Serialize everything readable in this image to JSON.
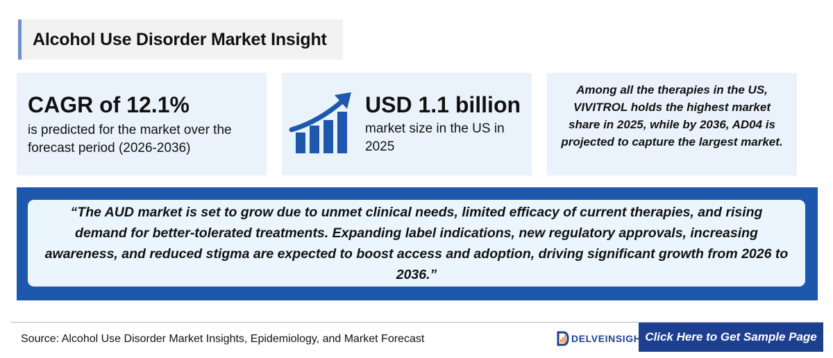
{
  "header": {
    "title": "Alcohol Use Disorder Market Insight"
  },
  "cards": {
    "cagr": {
      "headline": "CAGR of 12.1%",
      "description": "is predicted for the market over the forecast period (2026-2036)"
    },
    "market_size": {
      "icon": "growth-chart-icon",
      "headline": "USD 1.1 billion",
      "description": "market size in the US in 2025"
    },
    "therapies": {
      "text": "Among all the therapies in the US, VIVITROL holds the highest market share in 2025, while by 2036, AD04 is projected to capture the largest market."
    }
  },
  "quote": {
    "text": "“The AUD market is set to grow due to unmet clinical needs, limited efficacy of current therapies, and rising demand for better-tolerated treatments. Expanding label indications, new regulatory approvals, increasing awareness, and reduced stigma are expected to boost access and adoption, driving significant growth from 2026 to 2036.”"
  },
  "footer": {
    "source": "Source: Alcohol Use Disorder Market Insights, Epidemiology, and Market Forecast",
    "logo_text": "DELVEINSIGHT",
    "cta_label": "Click Here to Get Sample Page"
  },
  "colors": {
    "accent_blue": "#1d58ad",
    "dark_blue": "#1d3f8f",
    "card_background": "#eaf3fb",
    "title_accent": "#6f8fd0"
  }
}
